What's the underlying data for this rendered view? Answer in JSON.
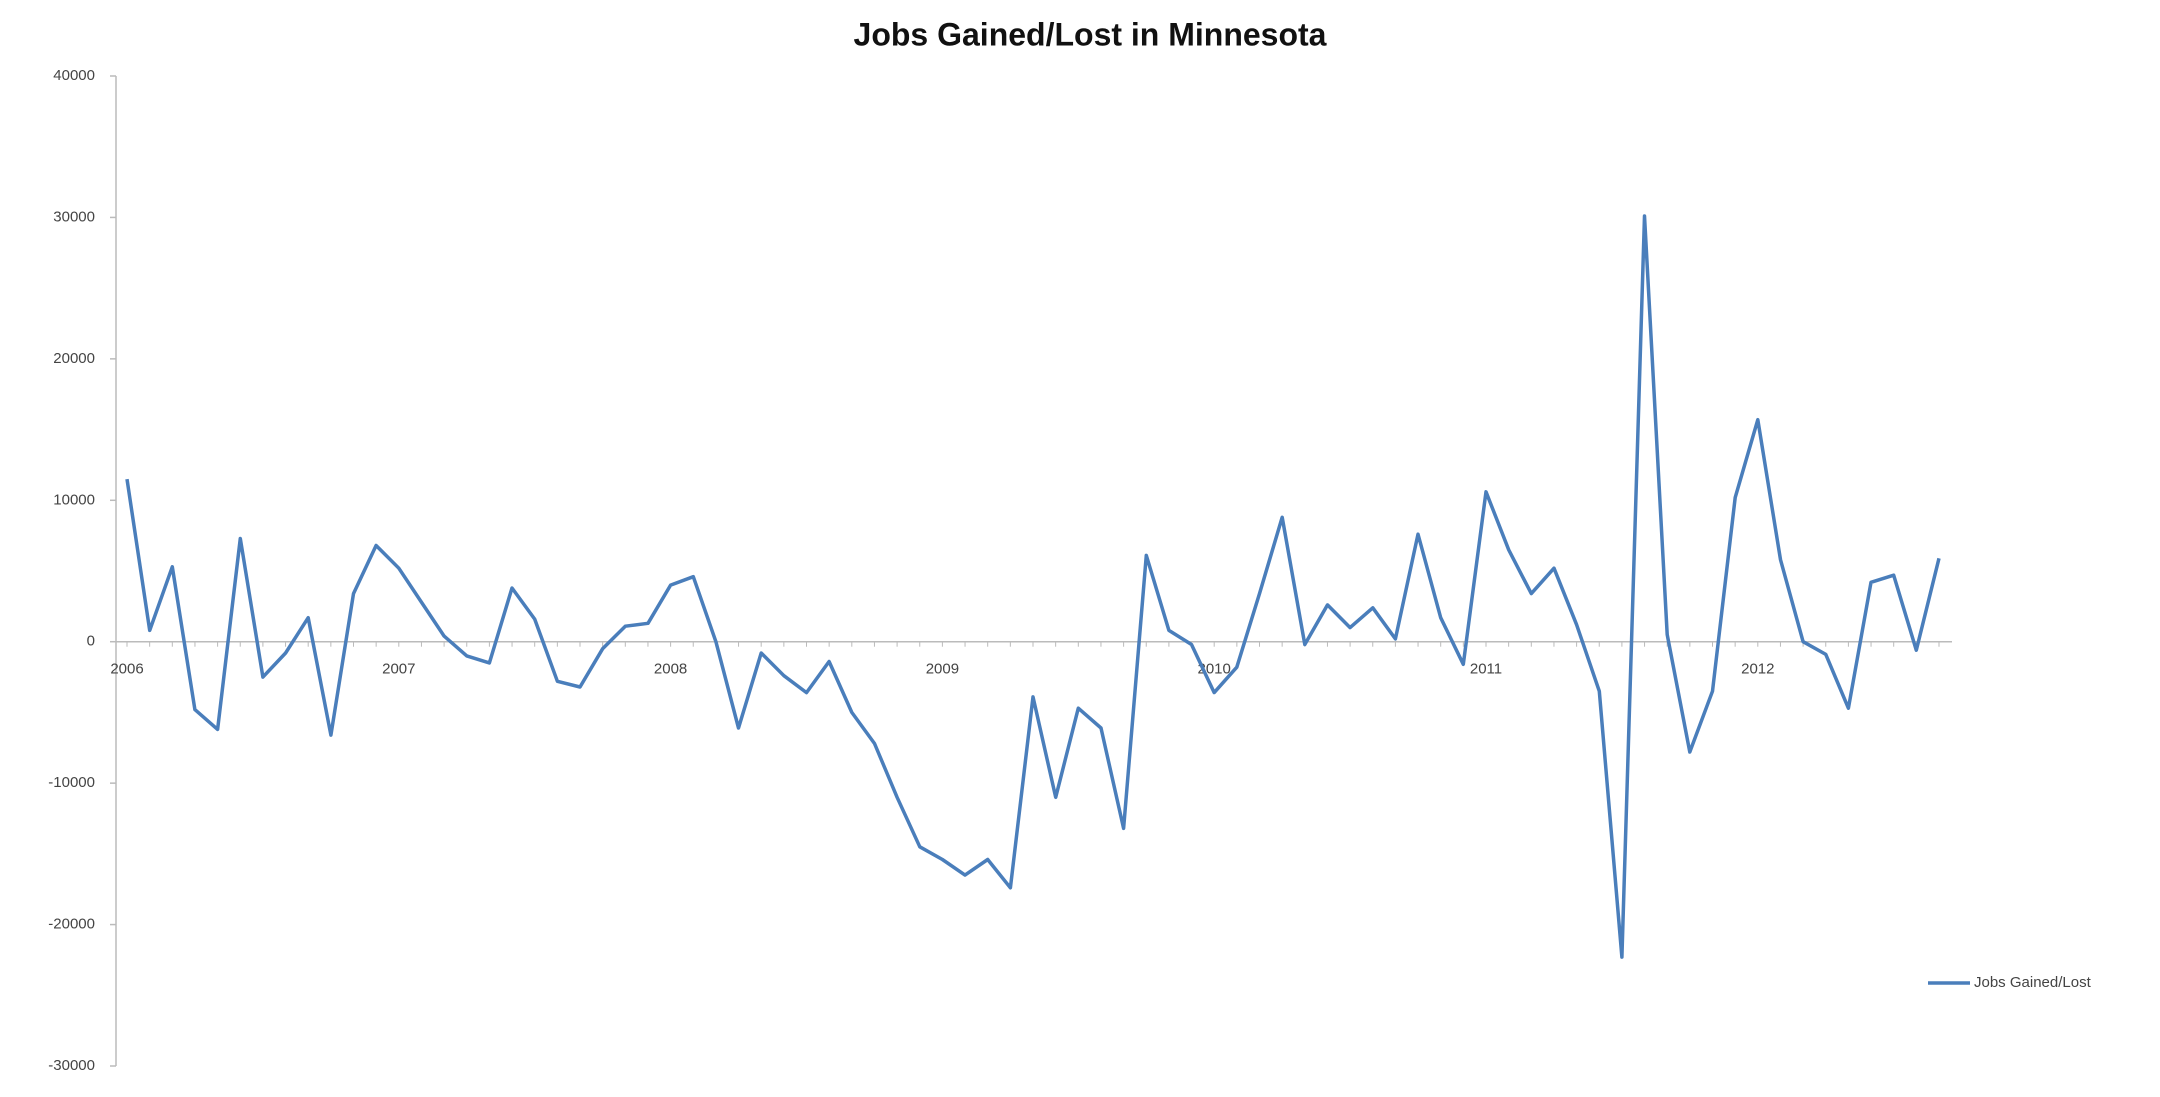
{
  "chart_data": {
    "type": "line",
    "title": "Jobs Gained/Lost in Minnesota",
    "categories": [
      "2006",
      null,
      null,
      null,
      null,
      null,
      null,
      null,
      null,
      null,
      null,
      null,
      "2007",
      null,
      null,
      null,
      null,
      null,
      null,
      null,
      null,
      null,
      null,
      null,
      "2008",
      null,
      null,
      null,
      null,
      null,
      null,
      null,
      null,
      null,
      null,
      null,
      "2009",
      null,
      null,
      null,
      null,
      null,
      null,
      null,
      null,
      null,
      null,
      null,
      "2010",
      null,
      null,
      null,
      null,
      null,
      null,
      null,
      null,
      null,
      null,
      null,
      "2011",
      null,
      null,
      null,
      null,
      null,
      null,
      null,
      null,
      null,
      null,
      null,
      "2012",
      null,
      null,
      null,
      null,
      null,
      null,
      null,
      null
    ],
    "series": [
      {
        "name": "Jobs Gained/Lost",
        "color": "#4a7ebb",
        "values": [
          11500,
          800,
          5300,
          -4800,
          -6200,
          7300,
          -2500,
          -800,
          1700,
          -6600,
          3400,
          6800,
          5200,
          2800,
          400,
          -1000,
          -1500,
          3800,
          1600,
          -2800,
          -3200,
          -500,
          1100,
          1300,
          4000,
          4600,
          0,
          -6100,
          -800,
          -2400,
          -3600,
          -1400,
          -5000,
          -7200,
          -11000,
          -14500,
          -15400,
          -16500,
          -15400,
          -17400,
          -3900,
          -11000,
          -4700,
          -6100,
          -13200,
          6100,
          800,
          -200,
          -3600,
          -1800,
          3400,
          8800,
          -200,
          2600,
          1000,
          2400,
          200,
          7600,
          1700,
          -1600,
          10600,
          6500,
          3400,
          5200,
          1200,
          -3500,
          -22300,
          30100,
          500,
          -7800,
          -3500,
          10200,
          15700,
          5800,
          0,
          -900,
          -4700,
          4200,
          4700,
          -600,
          5900
        ]
      }
    ],
    "ylim": [
      -30000,
      40000
    ],
    "yticks": [
      -30000,
      -20000,
      -10000,
      0,
      10000,
      20000,
      30000,
      40000
    ],
    "legend": "right"
  }
}
